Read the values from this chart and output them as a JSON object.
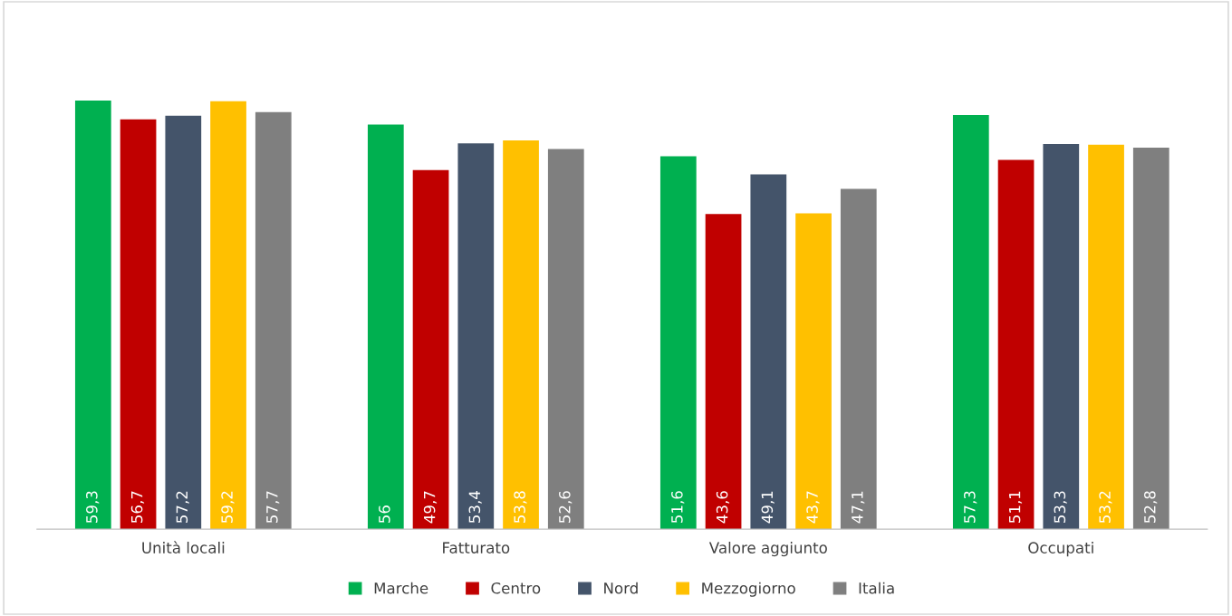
{
  "chart_data": {
    "type": "bar",
    "categories": [
      "Unità locali",
      "Fatturato",
      "Valore aggiunto",
      "Occupati"
    ],
    "series": [
      {
        "name": "Marche",
        "color": "#00b050",
        "values": [
          59.3,
          56,
          51.6,
          57.3
        ],
        "value_labels": [
          "59,3",
          "56",
          "51,6",
          "57,3"
        ]
      },
      {
        "name": "Centro",
        "color": "#c00000",
        "values": [
          56.7,
          49.7,
          43.6,
          51.1
        ],
        "value_labels": [
          "56,7",
          "49,7",
          "43,6",
          "51,1"
        ]
      },
      {
        "name": "Nord",
        "color": "#44546a",
        "values": [
          57.2,
          53.4,
          49.1,
          53.3
        ],
        "value_labels": [
          "57,2",
          "53,4",
          "49,1",
          "53,3"
        ]
      },
      {
        "name": "Mezzogiorno",
        "color": "#ffc000",
        "values": [
          59.2,
          53.8,
          43.7,
          53.2
        ],
        "value_labels": [
          "59,2",
          "53,8",
          "43,7",
          "53,2"
        ]
      },
      {
        "name": "Italia",
        "color": "#7f7f7f",
        "values": [
          57.7,
          52.6,
          47.1,
          52.8
        ],
        "value_labels": [
          "57,7",
          "52,6",
          "47,1",
          "52,8"
        ]
      }
    ],
    "legend": "bottom",
    "grid": false
  }
}
